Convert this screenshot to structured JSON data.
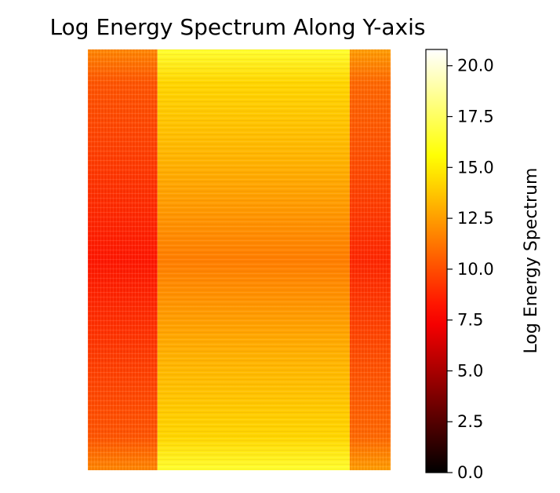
{
  "chart_data": {
    "type": "heatmap",
    "title": "Log Energy Spectrum Along Y-axis",
    "xlabel": "",
    "ylabel": "",
    "axes_visible": false,
    "colormap": "hot",
    "colorbar": {
      "label": "Log Energy Spectrum",
      "range": [
        0,
        20.8
      ],
      "ticks": [
        0.0,
        2.5,
        5.0,
        7.5,
        10.0,
        12.5,
        15.0,
        17.5,
        20.0
      ],
      "tick_labels": [
        "0.0",
        "2.5",
        "5.0",
        "7.5",
        "10.0",
        "12.5",
        "15.0",
        "17.5",
        "20.0"
      ]
    },
    "bands": [
      {
        "name": "left",
        "width_fraction": 0.23,
        "center_value": 8.3,
        "edge_value": 11.8
      },
      {
        "name": "middle",
        "width_fraction": 0.635,
        "center_value": 11.5,
        "edge_value": 16.5
      },
      {
        "name": "right",
        "width_fraction": 0.135,
        "center_value": 8.8,
        "edge_value": 12.5
      }
    ],
    "legend": "colorbar-right",
    "grid": false
  }
}
